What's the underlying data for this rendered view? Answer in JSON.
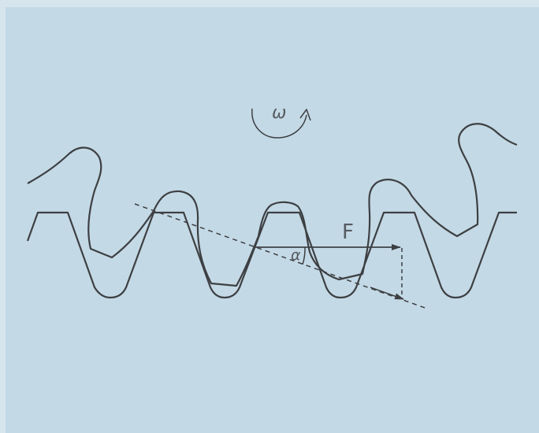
{
  "labels": {
    "omega": "ω",
    "force": "F",
    "alpha": "α"
  },
  "colors": {
    "background": "#c4d9e6",
    "outer_frame": "#d6e4ee",
    "line": "#3d4043"
  }
}
